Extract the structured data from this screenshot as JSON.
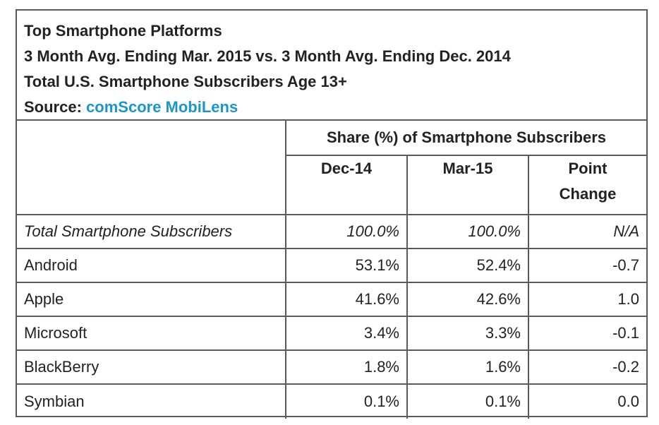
{
  "header": {
    "title": "Top Smartphone Platforms",
    "period": "3 Month Avg. Ending Mar. 2015 vs. 3 Month Avg. Ending Dec. 2014",
    "universe": "Total U.S. Smartphone Subscribers Age 13+",
    "source_label": "Source:",
    "source_name": "comScore MobiLens"
  },
  "colors": {
    "link": "#1a97c9",
    "border": "#5a5a5a",
    "text": "#222222"
  },
  "chart_data": {
    "type": "table",
    "title": "Top Smartphone Platforms",
    "group_header": "Share (%) of Smartphone Subscribers",
    "columns": [
      {
        "label": "Dec-14"
      },
      {
        "label": "Mar-15"
      },
      {
        "label_line1": "Point",
        "label_line2": "Change"
      }
    ],
    "total_row": {
      "label": "Total Smartphone Subscribers",
      "dec14": "100.0%",
      "mar15": "100.0%",
      "change": "N/A"
    },
    "rows": [
      {
        "label": "Android",
        "dec14": "53.1%",
        "mar15": "52.4%",
        "change": "-0.7"
      },
      {
        "label": "Apple",
        "dec14": "41.6%",
        "mar15": "42.6%",
        "change": "1.0"
      },
      {
        "label": "Microsoft",
        "dec14": "3.4%",
        "mar15": "3.3%",
        "change": "-0.1"
      },
      {
        "label": "BlackBerry",
        "dec14": "1.8%",
        "mar15": "1.6%",
        "change": "-0.2"
      },
      {
        "label": "Symbian",
        "dec14": "0.1%",
        "mar15": "0.1%",
        "change": "0.0"
      }
    ]
  }
}
